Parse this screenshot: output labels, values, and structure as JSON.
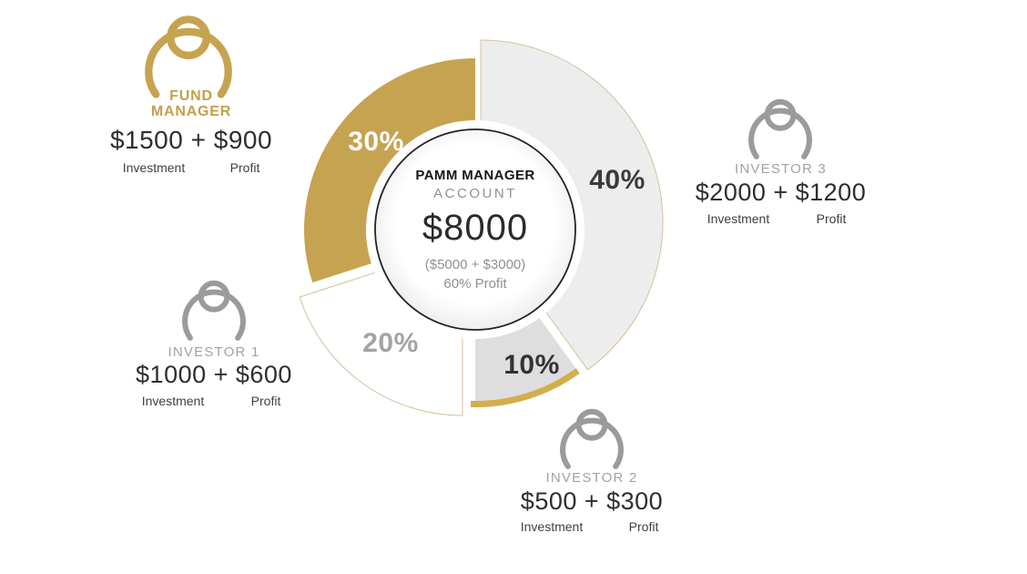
{
  "center": {
    "title": "PAMM MANAGER",
    "subtitle": "ACCOUNT",
    "amount": "$8000",
    "breakdown": "($5000 + $3000)",
    "profit_note": "60% Profit"
  },
  "participants": [
    {
      "id": "fund-manager",
      "role_lines": [
        "FUND",
        "MANAGER"
      ],
      "amount": "$1500 + $900",
      "investment": "$1500",
      "profit": "$900",
      "investment_label": "Investment",
      "profit_label": "Profit"
    },
    {
      "id": "investor-1",
      "role_lines": [
        "INVESTOR 1"
      ],
      "amount": "$1000 + $600",
      "investment": "$1000",
      "profit": "$600",
      "investment_label": "Investment",
      "profit_label": "Profit"
    },
    {
      "id": "investor-2",
      "role_lines": [
        "INVESTOR 2"
      ],
      "amount": "$500 + $300",
      "investment": "$500",
      "profit": "$300",
      "investment_label": "Investment",
      "profit_label": "Profit"
    },
    {
      "id": "investor-3",
      "role_lines": [
        "INVESTOR 3"
      ],
      "amount": "$2000 + $1200",
      "investment": "$2000",
      "profit": "$1200",
      "investment_label": "Investment",
      "profit_label": "Profit"
    }
  ],
  "chart_data": {
    "type": "pie",
    "style": "exploded-donut",
    "direction": "clockwise",
    "start_angle_deg": 0,
    "unit": "percent",
    "segments": [
      {
        "label": "40%",
        "value": 40,
        "color": "#ededee",
        "stroke": "#d5c19c",
        "label_color": "#3b3b3b",
        "radius": 200,
        "offset": [
          6,
          -8
        ]
      },
      {
        "label": "10%",
        "value": 10,
        "color": "#dedede",
        "stroke": "",
        "label_color": "#333333",
        "radius": 188,
        "offset": [
          0,
          0
        ],
        "gold_rim": true
      },
      {
        "label": "20%",
        "value": 20,
        "color": "#ffffff",
        "stroke": "#d5bf9e",
        "label_color": "#a3a3a3",
        "radius": 188,
        "offset": [
          -14,
          16
        ]
      },
      {
        "label": "30%",
        "value": 30,
        "color": "#c6a351",
        "stroke": "",
        "label_color": "#ffffff",
        "radius": 188,
        "offset": [
          0,
          0
        ]
      }
    ],
    "rim_color": "#d2ae4d",
    "center_circle_color": "#ffffff",
    "center_circle_border": "#232323"
  },
  "colors": {
    "gold": "#c6a351",
    "gold_text": "#c3a04a",
    "icon_gray": "#9b9b9b",
    "text_dark": "#2e2e2e",
    "muted_gray": "#8f8f8f",
    "tan_outline": "#d5bf9e"
  }
}
